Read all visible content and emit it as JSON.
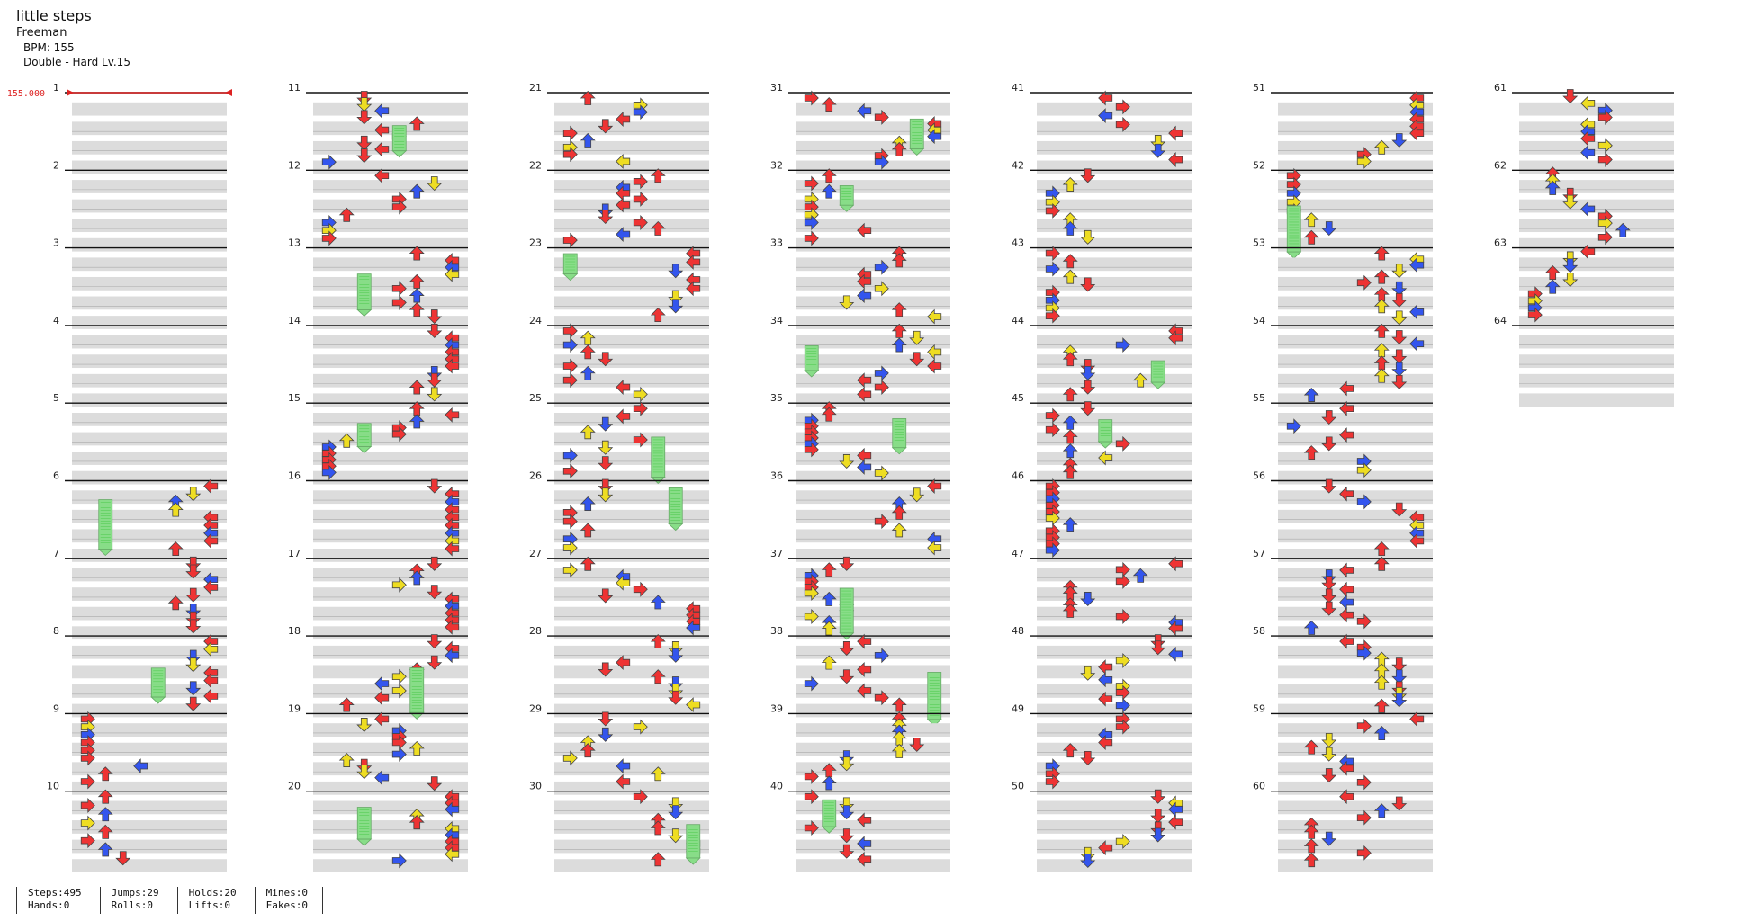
{
  "song": {
    "title": "little steps",
    "artist": "Freeman",
    "bpm_label": "BPM: 155",
    "difficulty_label": "Double - Hard  Lv.15"
  },
  "bpm_marker": "155.000",
  "measures": [
    "1",
    "2",
    "3",
    "4",
    "5",
    "6",
    "7",
    "8",
    "9",
    "10",
    "11",
    "12",
    "13",
    "14",
    "15",
    "16",
    "17",
    "18",
    "19",
    "20",
    "21",
    "22",
    "23",
    "24",
    "25",
    "26",
    "27",
    "28",
    "29",
    "30",
    "31",
    "32",
    "33",
    "34",
    "35",
    "36",
    "37",
    "38",
    "39",
    "40",
    "41",
    "42",
    "43",
    "44",
    "45",
    "46",
    "47",
    "48",
    "49",
    "50",
    "51",
    "52",
    "53",
    "54",
    "55",
    "56",
    "57",
    "58",
    "59",
    "60",
    "61",
    "62",
    "63",
    "64"
  ],
  "stats": {
    "steps": "Steps:495",
    "hands": "Hands:0",
    "jumps": "Jumps:29",
    "rolls": "Rolls:0",
    "holds": "Holds:20",
    "lifts": "Lifts:0",
    "mines": "Mines:0",
    "fakes": "Fakes:0"
  },
  "colors": {
    "quarter": "#ee3333",
    "eighth": "#3355ee",
    "sixteenth": "#eedd22",
    "hold": "#88dd88",
    "band": "#dcdcdc",
    "bpm_line": "#dd2222"
  }
}
